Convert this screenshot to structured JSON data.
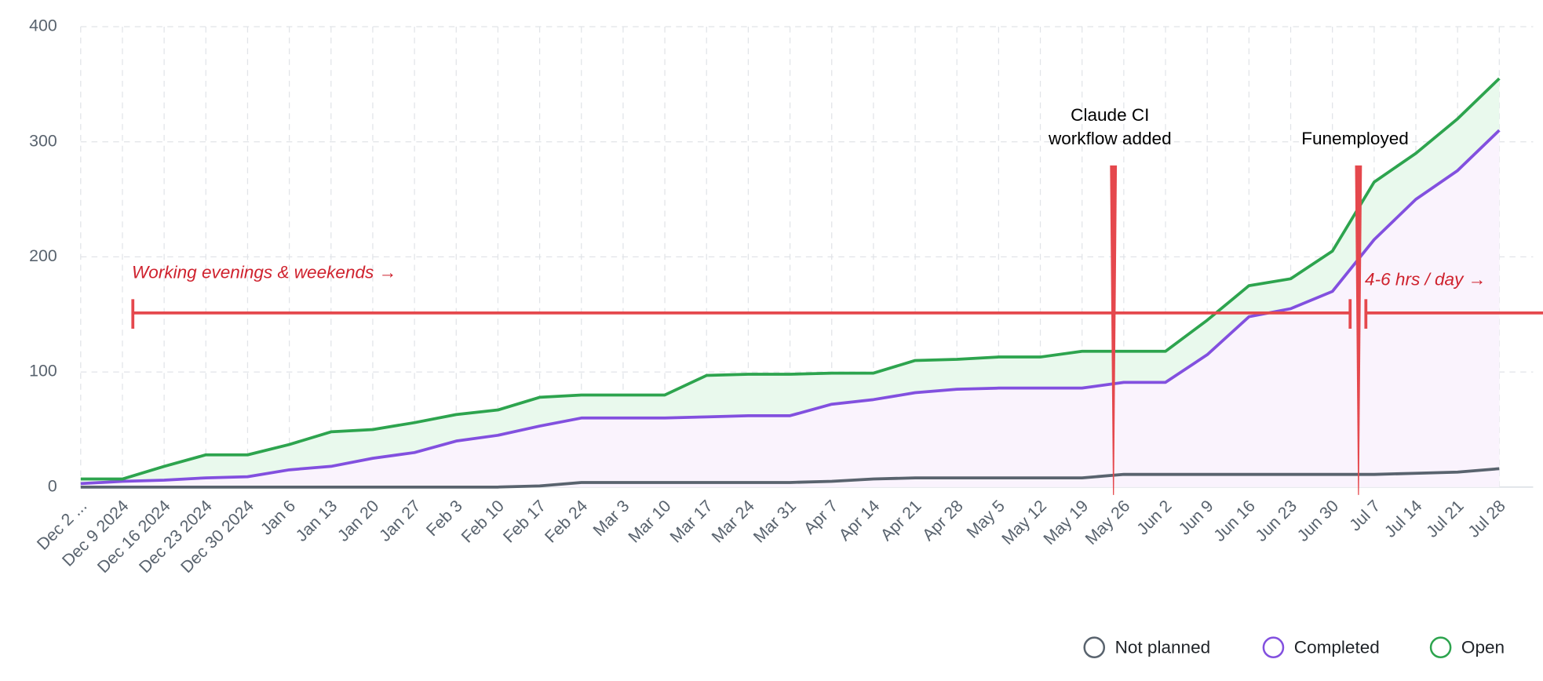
{
  "chart_data": {
    "type": "line",
    "categories": [
      "Dec 2 ...",
      "Dec 9 2024",
      "Dec 16 2024",
      "Dec 23 2024",
      "Dec 30 2024",
      "Jan 6",
      "Jan 13",
      "Jan 20",
      "Jan 27",
      "Feb 3",
      "Feb 10",
      "Feb 17",
      "Feb 24",
      "Mar 3",
      "Mar 10",
      "Mar 17",
      "Mar 24",
      "Mar 31",
      "Apr 7",
      "Apr 14",
      "Apr 21",
      "Apr 28",
      "May 5",
      "May 12",
      "May 19",
      "May 26",
      "Jun 2",
      "Jun 9",
      "Jun 16",
      "Jun 23",
      "Jun 30",
      "Jul 7",
      "Jul 14",
      "Jul 21",
      "Jul 28"
    ],
    "series": [
      {
        "name": "Not planned",
        "color": "#59636e",
        "values": [
          0,
          0,
          0,
          0,
          0,
          0,
          0,
          0,
          0,
          0,
          0,
          1,
          4,
          4,
          4,
          4,
          4,
          4,
          5,
          7,
          8,
          8,
          8,
          8,
          8,
          11,
          11,
          11,
          11,
          11,
          11,
          11,
          12,
          13,
          16
        ]
      },
      {
        "name": "Completed",
        "color": "#8250df",
        "fill": "#faf3fd",
        "values": [
          3,
          5,
          6,
          8,
          9,
          15,
          18,
          25,
          30,
          40,
          45,
          53,
          60,
          60,
          60,
          61,
          62,
          62,
          72,
          76,
          82,
          85,
          86,
          86,
          86,
          91,
          91,
          115,
          148,
          155,
          170,
          215,
          250,
          275,
          310
        ]
      },
      {
        "name": "Open",
        "color": "#2da44e",
        "fill": "#e9f9ed",
        "values": [
          7,
          7,
          18,
          28,
          28,
          37,
          48,
          50,
          56,
          63,
          67,
          78,
          80,
          80,
          80,
          97,
          98,
          98,
          99,
          99,
          110,
          111,
          113,
          113,
          118,
          118,
          118,
          145,
          175,
          181,
          205,
          265,
          290,
          320,
          355
        ]
      }
    ],
    "ylim": [
      0,
      400
    ],
    "yticks": [
      0,
      100,
      200,
      300,
      400
    ],
    "grid": true,
    "legend": "bottom-right",
    "annotations": [
      "Claude CI",
      "workflow added",
      "Funemployed",
      "Working evenings & weekends →",
      "4-6 hrs / day →"
    ]
  }
}
